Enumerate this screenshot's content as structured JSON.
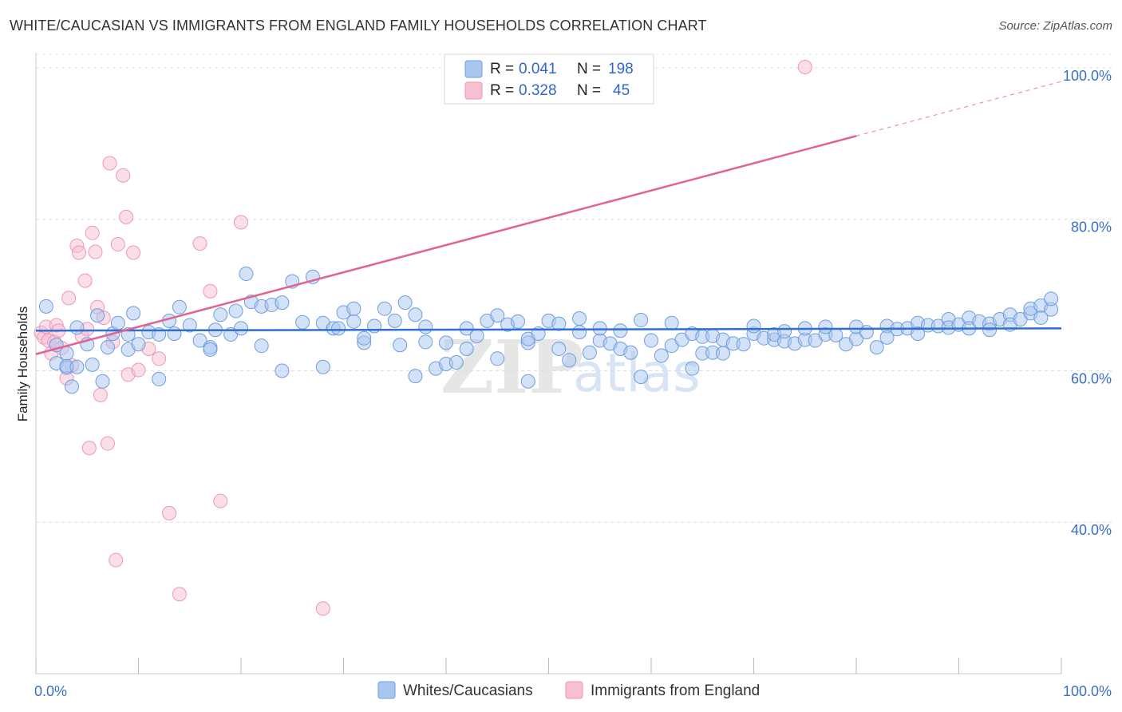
{
  "title": "WHITE/CAUCASIAN VS IMMIGRANTS FROM ENGLAND FAMILY HOUSEHOLDS CORRELATION CHART",
  "source": "Source: ZipAtlas.com",
  "watermark": {
    "zip": "ZIP",
    "atlas": "atlas"
  },
  "colors": {
    "blue_fill": "#a9c6ef",
    "blue_stroke": "#6e9ee0",
    "blue_line": "#2e6fd1",
    "pink_fill": "#f7c0d1",
    "pink_stroke": "#ef97b4",
    "pink_line": "#e0648f",
    "grid": "#dddddd",
    "label": "#3b6fc7"
  },
  "legend": {
    "rows": [
      {
        "r_label": "R =",
        "r_value": "0.041",
        "n_label": "N =",
        "n_value": "198"
      },
      {
        "r_label": "R =",
        "r_value": "0.328",
        "n_label": "N =",
        "n_value": "45"
      }
    ]
  },
  "chart_data": {
    "type": "scatter",
    "title": "WHITE/CAUCASIAN VS IMMIGRANTS FROM ENGLAND FAMILY HOUSEHOLDS CORRELATION CHART",
    "xlabel": "",
    "ylabel": "Family Households",
    "xlim": [
      0,
      100
    ],
    "ylim": [
      20,
      102
    ],
    "y_ticks": [
      40,
      60,
      80,
      100
    ],
    "y_tick_labels": [
      "40.0%",
      "60.0%",
      "80.0%",
      "100.0%"
    ],
    "x_tick_labels": [
      "0.0%",
      "100.0%"
    ],
    "grid": true,
    "series": [
      {
        "name": "Whites/Caucasians",
        "R": 0.041,
        "N": 198,
        "trend": {
          "x": [
            0,
            100
          ],
          "y": [
            65.3,
            65.6
          ]
        },
        "points": [
          [
            1,
            68.5
          ],
          [
            2,
            63.4
          ],
          [
            2,
            61.0
          ],
          [
            3,
            62.3
          ],
          [
            3,
            60.4
          ],
          [
            3,
            60.6
          ],
          [
            3.5,
            57.9
          ],
          [
            4,
            60.5
          ],
          [
            4,
            65.7
          ],
          [
            5,
            63.5
          ],
          [
            5.5,
            60.8
          ],
          [
            6,
            67.3
          ],
          [
            6.5,
            58.6
          ],
          [
            7,
            63.1
          ],
          [
            7.5,
            64.9
          ],
          [
            8,
            66.3
          ],
          [
            9,
            64.8
          ],
          [
            9,
            62.8
          ],
          [
            9.5,
            67.6
          ],
          [
            10,
            63.5
          ],
          [
            11,
            65.1
          ],
          [
            12,
            64.8
          ],
          [
            12,
            58.9
          ],
          [
            13,
            66.6
          ],
          [
            13.5,
            64.9
          ],
          [
            14,
            68.4
          ],
          [
            15,
            66.0
          ],
          [
            16,
            64.0
          ],
          [
            17,
            63.1
          ],
          [
            17,
            62.8
          ],
          [
            17.5,
            65.4
          ],
          [
            18,
            67.4
          ],
          [
            19,
            64.8
          ],
          [
            19.5,
            67.9
          ],
          [
            20,
            65.6
          ],
          [
            20.5,
            72.8
          ],
          [
            21,
            69.1
          ],
          [
            22,
            68.5
          ],
          [
            22,
            63.3
          ],
          [
            23,
            68.7
          ],
          [
            24,
            69.0
          ],
          [
            24,
            60.0
          ],
          [
            25,
            71.8
          ],
          [
            26,
            66.4
          ],
          [
            27,
            72.4
          ],
          [
            28,
            66.3
          ],
          [
            28,
            60.5
          ],
          [
            29,
            65.6
          ],
          [
            29.5,
            65.6
          ],
          [
            30,
            67.7
          ],
          [
            31,
            66.5
          ],
          [
            31,
            68.2
          ],
          [
            32,
            63.7
          ],
          [
            32,
            64.3
          ],
          [
            33,
            65.9
          ],
          [
            34,
            68.2
          ],
          [
            35,
            66.6
          ],
          [
            35.5,
            63.4
          ],
          [
            36,
            69.0
          ],
          [
            37,
            67.4
          ],
          [
            37,
            59.3
          ],
          [
            38,
            65.8
          ],
          [
            38,
            63.8
          ],
          [
            39,
            60.3
          ],
          [
            40,
            60.9
          ],
          [
            40,
            63.7
          ],
          [
            41,
            61.1
          ],
          [
            42,
            62.9
          ],
          [
            42,
            65.6
          ],
          [
            43,
            64.6
          ],
          [
            44,
            66.6
          ],
          [
            45,
            61.6
          ],
          [
            45,
            67.3
          ],
          [
            46,
            66.1
          ],
          [
            47,
            66.5
          ],
          [
            48,
            63.7
          ],
          [
            48,
            58.6
          ],
          [
            48,
            64.2
          ],
          [
            49,
            64.9
          ],
          [
            50,
            66.6
          ],
          [
            51,
            66.2
          ],
          [
            51,
            62.9
          ],
          [
            52,
            61.4
          ],
          [
            53,
            65.1
          ],
          [
            53,
            66.9
          ],
          [
            54,
            62.4
          ],
          [
            55,
            64.0
          ],
          [
            55,
            65.6
          ],
          [
            56,
            63.6
          ],
          [
            57,
            62.9
          ],
          [
            57,
            65.3
          ],
          [
            58,
            62.4
          ],
          [
            59,
            66.7
          ],
          [
            59,
            59.2
          ],
          [
            60,
            64.0
          ],
          [
            61,
            62.0
          ],
          [
            62,
            63.3
          ],
          [
            62,
            66.3
          ],
          [
            63,
            64.1
          ],
          [
            64,
            64.9
          ],
          [
            64,
            60.3
          ],
          [
            65,
            62.3
          ],
          [
            65,
            64.5
          ],
          [
            66,
            62.4
          ],
          [
            66,
            64.6
          ],
          [
            67,
            62.3
          ],
          [
            67,
            64.1
          ],
          [
            68,
            63.6
          ],
          [
            69,
            63.5
          ],
          [
            70,
            64.9
          ],
          [
            70,
            65.9
          ],
          [
            71,
            64.3
          ],
          [
            72,
            64.1
          ],
          [
            72,
            64.8
          ],
          [
            73,
            63.9
          ],
          [
            73,
            65.2
          ],
          [
            74,
            63.6
          ],
          [
            75,
            64.1
          ],
          [
            75,
            65.6
          ],
          [
            76,
            64.0
          ],
          [
            77,
            64.8
          ],
          [
            77,
            65.8
          ],
          [
            78,
            64.7
          ],
          [
            79,
            63.5
          ],
          [
            80,
            64.2
          ],
          [
            80,
            65.8
          ],
          [
            81,
            65.1
          ],
          [
            82,
            63.1
          ],
          [
            83,
            65.9
          ],
          [
            83,
            64.4
          ],
          [
            84,
            65.5
          ],
          [
            85,
            65.6
          ],
          [
            86,
            66.3
          ],
          [
            86,
            64.9
          ],
          [
            87,
            66.0
          ],
          [
            88,
            65.9
          ],
          [
            89,
            66.8
          ],
          [
            89,
            65.7
          ],
          [
            90,
            66.1
          ],
          [
            91,
            67.0
          ],
          [
            91,
            65.6
          ],
          [
            92,
            66.5
          ],
          [
            93,
            66.2
          ],
          [
            93,
            65.4
          ],
          [
            94,
            66.8
          ],
          [
            95,
            67.4
          ],
          [
            95,
            66.1
          ],
          [
            96,
            66.8
          ],
          [
            97,
            67.6
          ],
          [
            97,
            68.2
          ],
          [
            98,
            68.6
          ],
          [
            98,
            67.0
          ],
          [
            99,
            68.1
          ],
          [
            99,
            69.5
          ]
        ]
      },
      {
        "name": "Immigrants from England",
        "R": 0.328,
        "N": 45,
        "trend": {
          "x": [
            0,
            80
          ],
          "y": [
            62.2,
            91.0
          ]
        },
        "trend_extended": {
          "x": [
            80,
            100
          ],
          "y": [
            91.0,
            98.2
          ]
        },
        "points": [
          [
            0.5,
            65.0
          ],
          [
            0.8,
            64.4
          ],
          [
            1,
            65.8
          ],
          [
            1.2,
            64.0
          ],
          [
            1.5,
            62.3
          ],
          [
            1.8,
            63.8
          ],
          [
            2,
            66.0
          ],
          [
            2.2,
            65.3
          ],
          [
            2.5,
            63.0
          ],
          [
            3,
            59.0
          ],
          [
            3.2,
            69.6
          ],
          [
            3.5,
            60.7
          ],
          [
            4,
            76.5
          ],
          [
            4.2,
            75.6
          ],
          [
            4.5,
            64.6
          ],
          [
            4.8,
            71.9
          ],
          [
            5,
            65.5
          ],
          [
            5.2,
            49.8
          ],
          [
            5.5,
            78.2
          ],
          [
            5.8,
            75.7
          ],
          [
            6,
            68.4
          ],
          [
            6.3,
            56.8
          ],
          [
            6.6,
            67.0
          ],
          [
            7,
            50.4
          ],
          [
            7.2,
            87.4
          ],
          [
            7.5,
            63.8
          ],
          [
            7.8,
            35.0
          ],
          [
            8,
            76.7
          ],
          [
            8.5,
            85.8
          ],
          [
            8.8,
            80.3
          ],
          [
            9,
            59.5
          ],
          [
            9.5,
            75.6
          ],
          [
            10,
            60.1
          ],
          [
            11,
            62.9
          ],
          [
            12,
            61.6
          ],
          [
            13,
            41.2
          ],
          [
            14,
            30.5
          ],
          [
            16,
            76.8
          ],
          [
            17,
            70.5
          ],
          [
            18,
            42.8
          ],
          [
            20,
            79.6
          ],
          [
            28,
            28.6
          ],
          [
            75,
            100.1
          ]
        ]
      }
    ]
  },
  "bottom_legend": {
    "items": [
      "Whites/Caucasians",
      "Immigrants from England"
    ]
  }
}
